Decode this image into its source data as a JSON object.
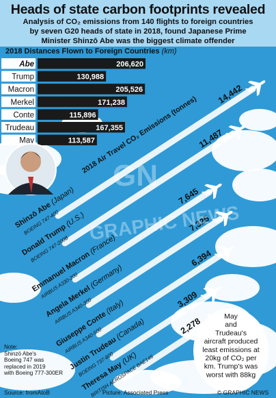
{
  "chart_data": {
    "title": "Heads of state carbon footprints revealed",
    "subtitle_lines": [
      "Analysis of CO₂ emissions from 140 flights to foreign countries",
      "by seven G20 heads of state in 2018, found Japanese Prime",
      "Minister Shinzō Abe was the biggest climate offender"
    ],
    "bar_chart": {
      "type": "bar",
      "heading": "2018 Distances Flown to Foreign Countries",
      "unit": "(km)",
      "categories": [
        "Abe",
        "Trump",
        "Macron",
        "Merkel",
        "Conte",
        "Trudeau",
        "May"
      ],
      "values": [
        206620,
        130988,
        205526,
        171238,
        115896,
        167355,
        113587
      ],
      "value_labels": [
        "206,620",
        "130,988",
        "205,526",
        "171,238",
        "115,896",
        "167,355",
        "113,587"
      ]
    },
    "emissions_chart": {
      "type": "bar",
      "heading": "2018 Air Travel CO₂ Emissions",
      "unit": "(tonnes)",
      "series": [
        {
          "leader": "Shinzō Abe",
          "country": "(Japan)",
          "aircraft": "BOEING 747-400",
          "value": 14442,
          "label": "14,442"
        },
        {
          "leader": "Donald Trump",
          "country": "(U.S.)",
          "aircraft": "BOEING 747-200B",
          "value": 11487,
          "label": "11,487"
        },
        {
          "leader": "Emmanuel Macron",
          "country": "(France)",
          "aircraft": "AIRBUS A330-200",
          "value": 7645,
          "label": "7,645"
        },
        {
          "leader": "Angela Merkel",
          "country": "(Germany)",
          "aircraft": "AIRBUS A340-300",
          "value": 7325,
          "label": "7,325"
        },
        {
          "leader": "Giuseppe Conte",
          "country": "(Italy)",
          "aircraft": "AIRBUS A340-500",
          "value": 6394,
          "label": "6,394"
        },
        {
          "leader": "Justin Trudeau",
          "country": "(Canada)",
          "aircraft": "BOEING 737-800",
          "value": 3309,
          "label": "3,309"
        },
        {
          "leader": "Theresa May",
          "country": "(UK)",
          "aircraft": "BRITISH AEROSPACE BAE146",
          "value": 2278,
          "label": "2,278"
        }
      ]
    },
    "callout_lines": [
      "May",
      "and",
      "Trudeau's",
      "aircraft produced",
      "least emissions at",
      "20kg of CO₂ per",
      "km. Trump's was",
      "worst with 88kg"
    ]
  },
  "notes": [
    "Note:",
    "Shinzō Abe's",
    "Boeing 747 was",
    "replaced in 2019",
    "with Boeing 777-300ER"
  ],
  "footer": {
    "source": "Source: fromAtoB",
    "picture": "Picture: Associated Press",
    "copyright": "© GRAPHIC NEWS"
  },
  "colors": {
    "sky": "#2f9ad6",
    "top_panel": "#a9d8f3",
    "bar": "#1a1a1a",
    "bar_text": "#ffffff",
    "label_box": "#ffffff",
    "cloud": "#ffffff",
    "contrail": "#ffffff"
  }
}
